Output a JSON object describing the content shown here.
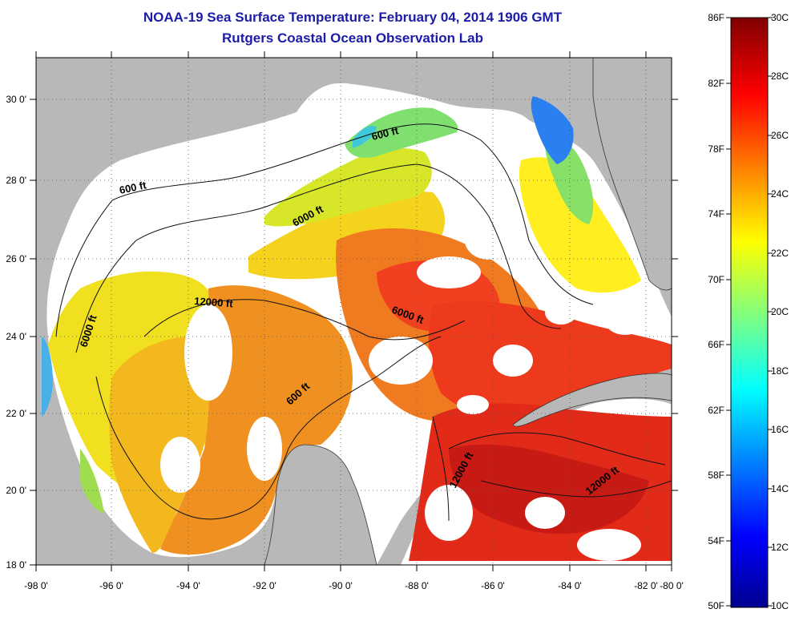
{
  "title": "NOAA-19 Sea Surface Temperature:  February 04, 2014 1906 GMT",
  "subtitle": "Rutgers Coastal Ocean Observation Lab",
  "map": {
    "lon_labels": [
      "-98 0'",
      "-96 0'",
      "-94 0'",
      "-92 0'",
      "-90 0'",
      "-88 0'",
      "-86 0'",
      "-84 0'",
      "-82 0'",
      "-80 0'"
    ],
    "lat_labels": [
      "30 0'",
      "28 0'",
      "26 0'",
      "24 0'",
      "22 0'",
      "20 0'",
      "18 0'"
    ],
    "contour_labels": [
      "600 ft",
      "600 ft",
      "6000 ft",
      "6000 ft",
      "12000 ft",
      "6000 ft",
      "600 ft",
      "12000 ft",
      "12000 ft"
    ],
    "land_color": "#b8b8b8"
  },
  "colorbar": {
    "f_labels": [
      "86F",
      "82F",
      "78F",
      "74F",
      "70F",
      "66F",
      "62F",
      "58F",
      "54F",
      "50F"
    ],
    "c_labels": [
      "30C",
      "28C",
      "26C",
      "24C",
      "22C",
      "20C",
      "18C",
      "16C",
      "14C",
      "12C",
      "10C"
    ]
  }
}
